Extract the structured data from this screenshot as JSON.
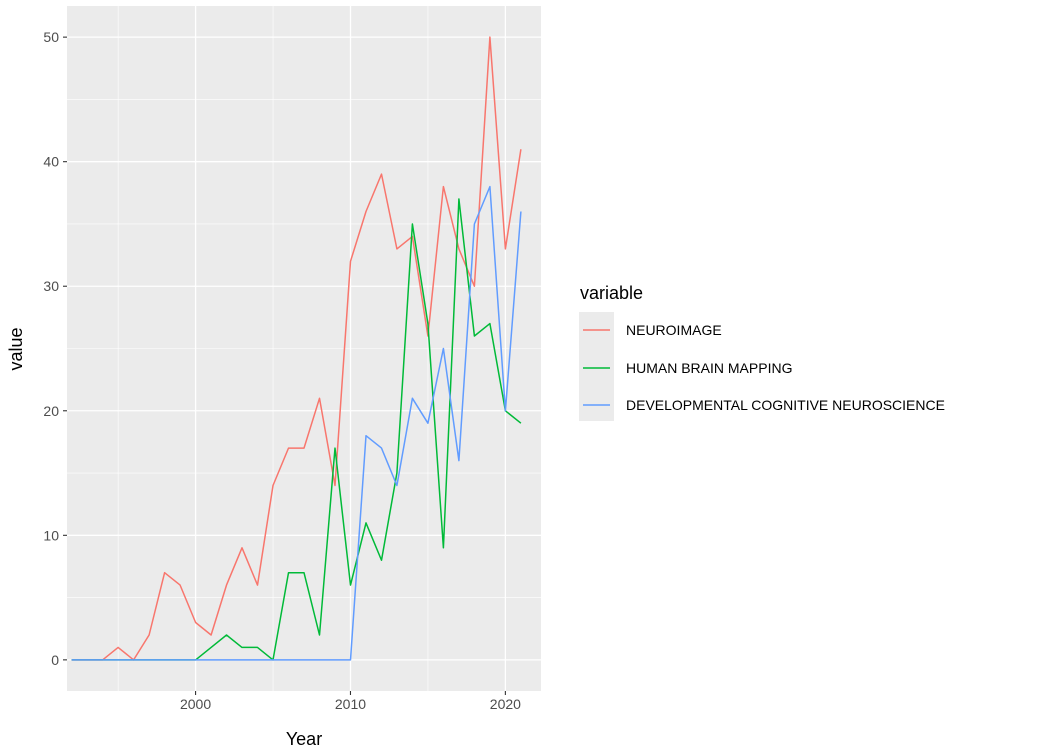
{
  "chart_data": {
    "type": "line",
    "xlabel": "Year",
    "ylabel": "value",
    "xlim": [
      1991.7,
      2022.3
    ],
    "ylim": [
      -2.5,
      52.5
    ],
    "x_ticks": [
      2000,
      2010,
      2020
    ],
    "y_ticks": [
      0,
      10,
      20,
      30,
      40,
      50
    ],
    "grid": true,
    "legend": {
      "title": "variable",
      "placement": "right"
    },
    "series": [
      {
        "name": "NEUROIMAGE",
        "color": "#F8766D",
        "x": [
          1992,
          1993,
          1994,
          1995,
          1996,
          1997,
          1998,
          1999,
          2000,
          2001,
          2002,
          2003,
          2004,
          2005,
          2006,
          2007,
          2008,
          2009,
          2010,
          2011,
          2012,
          2013,
          2014,
          2015,
          2016,
          2017,
          2018,
          2019,
          2020,
          2021
        ],
        "values": [
          0,
          0,
          0,
          1,
          0,
          2,
          7,
          6,
          3,
          2,
          6,
          9,
          6,
          14,
          17,
          17,
          21,
          14,
          32,
          36,
          39,
          33,
          34,
          26,
          38,
          33,
          30,
          50,
          33,
          41
        ]
      },
      {
        "name": "HUMAN BRAIN MAPPING",
        "color": "#00BA38",
        "x": [
          1992,
          1993,
          1994,
          1995,
          1996,
          1997,
          1998,
          1999,
          2000,
          2001,
          2002,
          2003,
          2004,
          2005,
          2006,
          2007,
          2008,
          2009,
          2010,
          2011,
          2012,
          2013,
          2014,
          2015,
          2016,
          2017,
          2018,
          2019,
          2020,
          2021
        ],
        "values": [
          0,
          0,
          0,
          0,
          0,
          0,
          0,
          0,
          0,
          1,
          2,
          1,
          1,
          0,
          7,
          7,
          2,
          17,
          6,
          11,
          8,
          15,
          35,
          27,
          9,
          37,
          26,
          27,
          20,
          19
        ]
      },
      {
        "name": "DEVELOPMENTAL COGNITIVE NEUROSCIENCE",
        "color": "#619CFF",
        "x": [
          1992,
          1993,
          1994,
          1995,
          1996,
          1997,
          1998,
          1999,
          2000,
          2001,
          2002,
          2003,
          2004,
          2005,
          2006,
          2007,
          2008,
          2009,
          2010,
          2011,
          2012,
          2013,
          2014,
          2015,
          2016,
          2017,
          2018,
          2019,
          2020,
          2021
        ],
        "values": [
          0,
          0,
          0,
          0,
          0,
          0,
          0,
          0,
          0,
          0,
          0,
          0,
          0,
          0,
          0,
          0,
          0,
          0,
          0,
          18,
          17,
          14,
          21,
          19,
          25,
          16,
          35,
          38,
          20,
          36
        ]
      }
    ]
  }
}
